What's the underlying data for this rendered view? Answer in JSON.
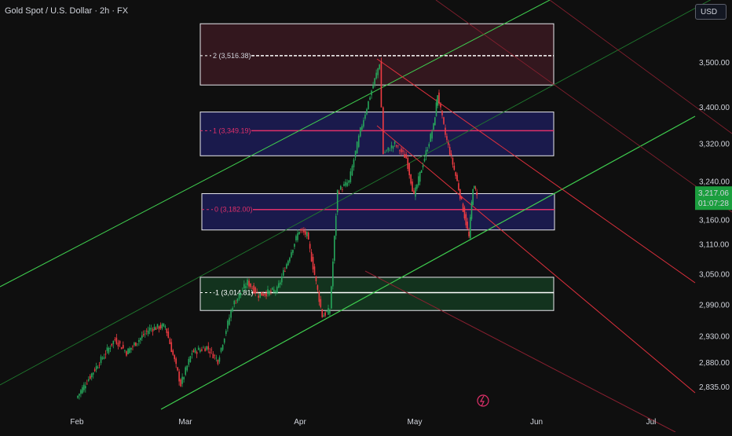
{
  "header": {
    "title": "Gold Spot / U.S. Dollar · 2h · FX",
    "currency_button": "USD"
  },
  "chart_data": {
    "type": "candlestick",
    "title": "Gold Spot / U.S. Dollar · 2h · FX",
    "x_ticks": [
      "Feb",
      "Mar",
      "Apr",
      "May",
      "Jun",
      "Jul"
    ],
    "y_ticks": [
      "3,500.00",
      "3,400.00",
      "3,320.00",
      "3,240.00",
      "3,160.00",
      "3,110.00",
      "3,050.00",
      "2,990.00",
      "2,930.00",
      "2,880.00",
      "2,835.00"
    ],
    "y_scale": "log",
    "last_price": "3,217.06",
    "countdown": "01:07:28",
    "fib_levels": [
      {
        "label": "2 (3,516.38)",
        "value": 3516.38
      },
      {
        "label": "1 (3,349.19)",
        "value": 3349.19
      },
      {
        "label": "0 (3,182.00)",
        "value": 3182.0
      },
      {
        "label": "-1 (3,014.81)",
        "value": 3014.81
      }
    ],
    "price_path": [
      [
        "Feb 1",
        2815
      ],
      [
        "Feb 5",
        2860
      ],
      [
        "Feb 11",
        2925
      ],
      [
        "Feb 14",
        2900
      ],
      [
        "Feb 20",
        2945
      ],
      [
        "Feb 24",
        2950
      ],
      [
        "Feb 28",
        2840
      ],
      [
        "Mar 3",
        2900
      ],
      [
        "Mar 7",
        2910
      ],
      [
        "Mar 10",
        2885
      ],
      [
        "Mar 14",
        2990
      ],
      [
        "Mar 18",
        3035
      ],
      [
        "Mar 21",
        3010
      ],
      [
        "Mar 26",
        3020
      ],
      [
        "Apr 1",
        3140
      ],
      [
        "Apr 3",
        3130
      ],
      [
        "Apr 7",
        2970
      ],
      [
        "Apr 9",
        2980
      ],
      [
        "Apr 11",
        3220
      ],
      [
        "Apr 14",
        3240
      ],
      [
        "Apr 17",
        3350
      ],
      [
        "Apr 22",
        3500
      ],
      [
        "Apr 23",
        3300
      ],
      [
        "Apr 26",
        3320
      ],
      [
        "Apr 29",
        3290
      ],
      [
        "May 1",
        3210
      ],
      [
        "May 6",
        3360
      ],
      [
        "May 7",
        3430
      ],
      [
        "May 9",
        3340
      ],
      [
        "May 12",
        3240
      ],
      [
        "May 15",
        3125
      ],
      [
        "May 16",
        3230
      ],
      [
        "May 17",
        3217.06
      ]
    ],
    "grid": false,
    "legend": "none"
  }
}
